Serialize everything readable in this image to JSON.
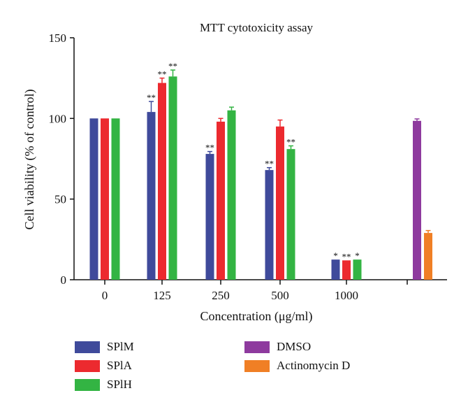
{
  "chart_data": {
    "type": "bar",
    "title": "MTT cytotoxicity assay",
    "xlabel": "Concentration (μg/ml)",
    "ylabel": "Cell viability (% of control)",
    "ylim": [
      0,
      150
    ],
    "yticks": [
      "0",
      "50",
      "100",
      "150"
    ],
    "categories": [
      "0",
      "125",
      "250",
      "500",
      "1000"
    ],
    "series": [
      {
        "name": "SPlM",
        "color": "#3f4a9b",
        "values": [
          100,
          104,
          78,
          68,
          12.5
        ],
        "errors": [
          0,
          6.5,
          1.5,
          1.5,
          0
        ],
        "annotations": [
          "",
          "**",
          "**",
          "**",
          "*"
        ]
      },
      {
        "name": "SPlA",
        "color": "#ec2a2f",
        "values": [
          100,
          122,
          98,
          95,
          12
        ],
        "errors": [
          0,
          3,
          2,
          4,
          0
        ],
        "annotations": [
          "",
          "**",
          "",
          "",
          "**"
        ]
      },
      {
        "name": "SPlH",
        "color": "#33b443",
        "values": [
          100,
          126,
          105,
          81,
          12.5
        ],
        "errors": [
          0,
          4,
          2,
          2,
          0
        ],
        "annotations": [
          "",
          "**",
          "",
          "**",
          "*"
        ]
      }
    ],
    "controls": [
      {
        "name": "DMSO",
        "color": "#8e3a9e",
        "value": 98.5,
        "error": 1.2
      },
      {
        "name": "Actinomycin D",
        "color": "#f07f25",
        "value": 29,
        "error": 1.5
      }
    ],
    "legend_position": "bottom",
    "grid": false
  }
}
